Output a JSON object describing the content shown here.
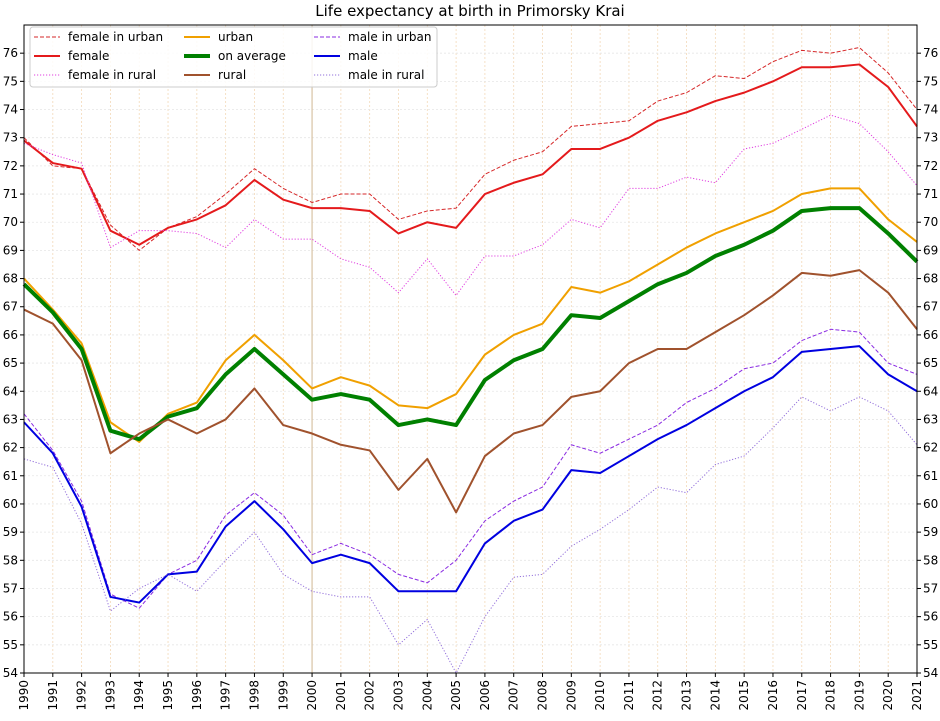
{
  "chart_data": {
    "type": "line",
    "title": "Life expectancy at birth in Primorsky Krai",
    "xlabel": "",
    "ylabel": "",
    "xlim": [
      1990,
      2021
    ],
    "ylim": [
      54,
      77
    ],
    "x": [
      1990,
      1991,
      1992,
      1993,
      1994,
      1995,
      1996,
      1997,
      1998,
      1999,
      2000,
      2001,
      2002,
      2003,
      2004,
      2005,
      2006,
      2007,
      2008,
      2009,
      2010,
      2011,
      2012,
      2013,
      2014,
      2015,
      2016,
      2017,
      2018,
      2019,
      2020,
      2021
    ],
    "x_tick_labels": [
      "1990",
      "1991",
      "1992",
      "1993",
      "1994",
      "1995",
      "1996",
      "1997",
      "1998",
      "1999",
      "2000",
      "2001",
      "2002",
      "2003",
      "2004",
      "2005",
      "2006",
      "2007",
      "2008",
      "2009",
      "2010",
      "2011",
      "2012",
      "2013",
      "2014",
      "2015",
      "2016",
      "2017",
      "2018",
      "2019",
      "2020",
      "2021"
    ],
    "y_tick_labels": [
      "54",
      "55",
      "56",
      "57",
      "58",
      "59",
      "60",
      "61",
      "62",
      "63",
      "64",
      "65",
      "66",
      "67",
      "68",
      "69",
      "70",
      "71",
      "72",
      "73",
      "74",
      "75",
      "76"
    ],
    "legend_location": "top-left",
    "series": [
      {
        "name": "female in urban",
        "color": "#d62728",
        "style": "dashed",
        "width": 1,
        "values": [
          73.0,
          72.0,
          71.9,
          69.9,
          69.0,
          69.8,
          70.2,
          71.0,
          71.9,
          71.2,
          70.7,
          71.0,
          71.0,
          70.1,
          70.4,
          70.5,
          71.7,
          72.2,
          72.5,
          73.4,
          73.5,
          73.6,
          74.3,
          74.6,
          75.2,
          75.1,
          75.7,
          76.1,
          76.0,
          76.2,
          75.3,
          74.0
        ]
      },
      {
        "name": "female",
        "color": "#e41a1c",
        "style": "solid",
        "width": 2,
        "values": [
          72.9,
          72.1,
          71.9,
          69.7,
          69.2,
          69.8,
          70.1,
          70.6,
          71.5,
          70.8,
          70.5,
          70.5,
          70.4,
          69.6,
          70.0,
          69.8,
          71.0,
          71.4,
          71.7,
          72.6,
          72.6,
          73.0,
          73.6,
          73.9,
          74.3,
          74.6,
          75.0,
          75.5,
          75.5,
          75.6,
          74.8,
          73.4
        ]
      },
      {
        "name": "female in rural",
        "color": "#e040e0",
        "style": "dotted",
        "width": 1,
        "values": [
          72.8,
          72.4,
          72.1,
          69.1,
          69.7,
          69.7,
          69.6,
          69.1,
          70.1,
          69.4,
          69.4,
          68.7,
          68.4,
          67.5,
          68.7,
          67.4,
          68.8,
          68.8,
          69.2,
          70.1,
          69.8,
          71.2,
          71.2,
          71.6,
          71.4,
          72.6,
          72.8,
          73.3,
          73.8,
          73.5,
          72.5,
          71.3
        ]
      },
      {
        "name": "urban",
        "color": "#f0a000",
        "style": "solid",
        "width": 2,
        "values": [
          68.0,
          66.9,
          65.7,
          62.9,
          62.2,
          63.2,
          63.6,
          65.1,
          66.0,
          65.1,
          64.1,
          64.5,
          64.2,
          63.5,
          63.4,
          63.9,
          65.3,
          66.0,
          66.4,
          67.7,
          67.5,
          67.9,
          68.5,
          69.1,
          69.6,
          70.0,
          70.4,
          71.0,
          71.2,
          71.2,
          70.1,
          69.3
        ]
      },
      {
        "name": "on average",
        "color": "#008000",
        "style": "solid",
        "width": 4,
        "values": [
          67.8,
          66.8,
          65.5,
          62.6,
          62.3,
          63.1,
          63.4,
          64.6,
          65.5,
          64.6,
          63.7,
          63.9,
          63.7,
          62.8,
          63.0,
          62.8,
          64.4,
          65.1,
          65.5,
          66.7,
          66.6,
          67.2,
          67.8,
          68.2,
          68.8,
          69.2,
          69.7,
          70.4,
          70.5,
          70.5,
          69.6,
          68.6
        ]
      },
      {
        "name": "rural",
        "color": "#a0522d",
        "style": "solid",
        "width": 2,
        "values": [
          66.9,
          66.4,
          65.1,
          61.8,
          62.5,
          63.0,
          62.5,
          63.0,
          64.1,
          62.8,
          62.5,
          62.1,
          61.9,
          60.5,
          61.6,
          59.7,
          61.7,
          62.5,
          62.8,
          63.8,
          64.0,
          65.0,
          65.5,
          65.5,
          66.1,
          66.7,
          67.4,
          68.2,
          68.1,
          68.3,
          67.5,
          66.2
        ]
      },
      {
        "name": "male in urban",
        "color": "#8a2be2",
        "style": "dashed",
        "width": 1,
        "values": [
          63.2,
          61.9,
          60.1,
          56.8,
          56.3,
          57.5,
          58.0,
          59.6,
          60.4,
          59.6,
          58.2,
          58.6,
          58.2,
          57.5,
          57.2,
          58.0,
          59.4,
          60.1,
          60.6,
          62.1,
          61.8,
          62.3,
          62.8,
          63.6,
          64.1,
          64.8,
          65.0,
          65.8,
          66.2,
          66.1,
          65.0,
          64.6
        ]
      },
      {
        "name": "male",
        "color": "#0000e0",
        "style": "solid",
        "width": 2,
        "values": [
          62.9,
          61.8,
          59.9,
          56.7,
          56.5,
          57.5,
          57.6,
          59.2,
          60.1,
          59.1,
          57.9,
          58.2,
          57.9,
          56.9,
          56.9,
          56.9,
          58.6,
          59.4,
          59.8,
          61.2,
          61.1,
          61.7,
          62.3,
          62.8,
          63.4,
          64.0,
          64.5,
          65.4,
          65.5,
          65.6,
          64.6,
          64.0
        ]
      },
      {
        "name": "male in rural",
        "color": "#9370db",
        "style": "dotted",
        "width": 1,
        "values": [
          61.6,
          61.3,
          59.3,
          56.2,
          57.0,
          57.5,
          56.9,
          58.0,
          59.0,
          57.5,
          56.9,
          56.7,
          56.7,
          55.0,
          55.9,
          54.0,
          56.0,
          57.4,
          57.5,
          58.5,
          59.1,
          59.8,
          60.6,
          60.4,
          61.4,
          61.7,
          62.7,
          63.8,
          63.3,
          63.8,
          63.3,
          62.1
        ]
      }
    ]
  }
}
